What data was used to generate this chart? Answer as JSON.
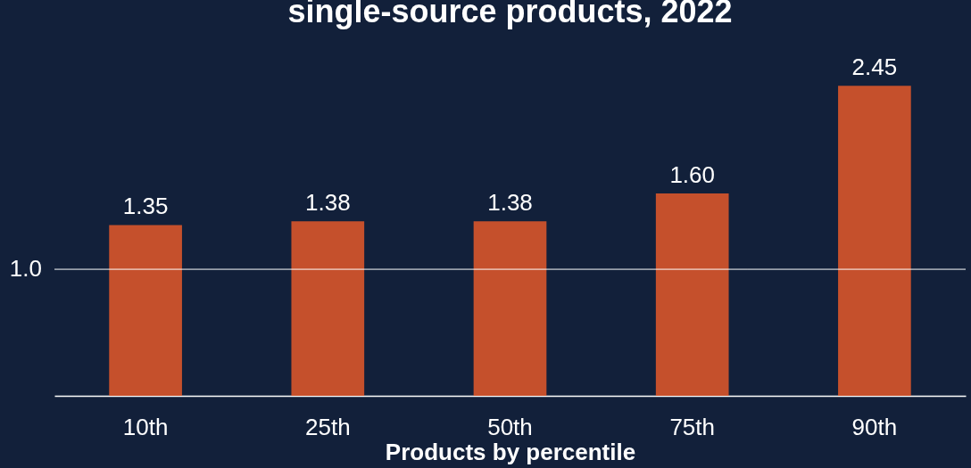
{
  "chart_data": {
    "type": "bar",
    "title": "single-source products, 2022",
    "xlabel": "Products by percentile",
    "categories": [
      "10th",
      "25th",
      "50th",
      "75th",
      "90th"
    ],
    "values": [
      1.35,
      1.38,
      1.38,
      1.6,
      2.45
    ],
    "value_labels": [
      "1.35",
      "1.38",
      "1.38",
      "1.60",
      "2.45"
    ],
    "color": "#c5502c",
    "ref_lines": [
      {
        "axis": "y",
        "value": 1,
        "label": "1.0",
        "color": "#ffffff"
      }
    ]
  }
}
